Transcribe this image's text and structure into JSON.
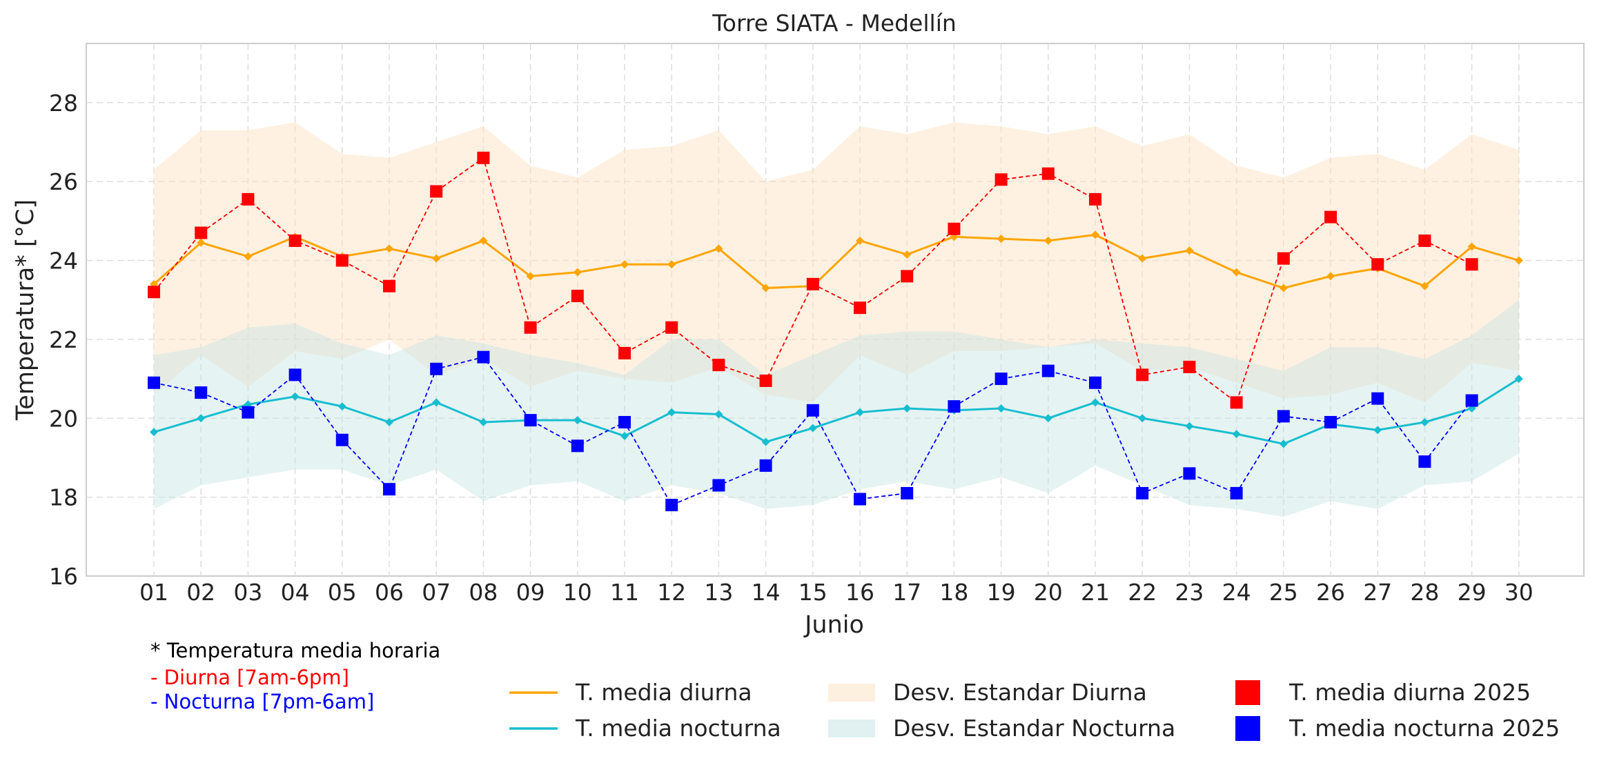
{
  "chart_data": {
    "type": "line",
    "title": "Torre SIATA - Medellín",
    "xlabel": "Junio",
    "ylabel": "Temperatura* [°C]",
    "ylim": [
      16,
      29.5
    ],
    "yticks": [
      16,
      18,
      20,
      22,
      24,
      26,
      28
    ],
    "grid": true,
    "legend_position": "bottom",
    "categories": [
      "01",
      "02",
      "03",
      "04",
      "05",
      "06",
      "07",
      "08",
      "09",
      "10",
      "11",
      "12",
      "13",
      "14",
      "15",
      "16",
      "17",
      "18",
      "19",
      "20",
      "21",
      "22",
      "23",
      "24",
      "25",
      "26",
      "27",
      "28",
      "29",
      "30"
    ],
    "bands": [
      {
        "name": "Desv. Estandar Diurna",
        "color": "#fde3c4",
        "upper": [
          26.3,
          27.3,
          27.3,
          27.5,
          26.7,
          26.6,
          27.0,
          27.4,
          26.4,
          26.1,
          26.8,
          26.9,
          27.3,
          26.0,
          26.3,
          27.4,
          27.2,
          27.5,
          27.4,
          27.2,
          27.4,
          26.9,
          27.2,
          26.4,
          26.1,
          26.6,
          26.7,
          26.3,
          27.2,
          26.8
        ],
        "lower": [
          20.6,
          21.6,
          20.8,
          21.7,
          21.5,
          22.0,
          21.1,
          21.5,
          20.8,
          21.2,
          21.0,
          20.9,
          21.3,
          20.6,
          20.4,
          21.6,
          21.1,
          21.7,
          21.7,
          21.8,
          21.9,
          21.2,
          21.3,
          20.9,
          20.5,
          20.6,
          20.9,
          20.4,
          21.4,
          21.2
        ]
      },
      {
        "name": "Desv. Estandar Nocturna",
        "color": "#c8e4e4",
        "upper": [
          21.6,
          21.8,
          22.3,
          22.4,
          21.9,
          21.6,
          22.1,
          21.9,
          21.6,
          21.4,
          21.1,
          22.0,
          22.0,
          21.1,
          21.6,
          22.1,
          22.2,
          22.2,
          22.0,
          21.8,
          22.0,
          21.9,
          21.8,
          21.5,
          21.2,
          21.8,
          21.8,
          21.5,
          22.1,
          23.0
        ],
        "lower": [
          17.7,
          18.3,
          18.5,
          18.7,
          18.7,
          18.3,
          18.7,
          17.9,
          18.3,
          18.4,
          17.9,
          18.3,
          18.1,
          17.7,
          17.8,
          18.2,
          18.4,
          18.2,
          18.5,
          18.1,
          18.8,
          18.3,
          17.8,
          17.7,
          17.5,
          17.9,
          17.7,
          18.3,
          18.4,
          19.1
        ]
      }
    ],
    "series": [
      {
        "name": "T. media diurna",
        "color": "#ffa500",
        "style": "solid-diamond",
        "values": [
          23.4,
          24.45,
          24.1,
          24.6,
          24.1,
          24.3,
          24.05,
          24.5,
          23.6,
          23.7,
          23.9,
          23.9,
          24.3,
          23.3,
          23.35,
          24.5,
          24.15,
          24.6,
          24.55,
          24.5,
          24.65,
          24.05,
          24.25,
          23.7,
          23.3,
          23.6,
          23.8,
          23.35,
          24.35,
          24.0
        ]
      },
      {
        "name": "T. media nocturna",
        "color": "#17becf",
        "style": "solid-diamond",
        "values": [
          19.65,
          20.0,
          20.35,
          20.55,
          20.3,
          19.9,
          20.4,
          19.9,
          19.95,
          19.95,
          19.55,
          20.15,
          20.1,
          19.4,
          19.75,
          20.15,
          20.25,
          20.2,
          20.25,
          20.0,
          20.4,
          20.0,
          19.8,
          19.6,
          19.35,
          19.85,
          19.7,
          19.9,
          20.25,
          21.0
        ]
      },
      {
        "name": "T. media diurna 2025",
        "color": "#ff0000",
        "style": "dashed-square",
        "values": [
          23.2,
          24.7,
          25.55,
          24.5,
          24.0,
          23.35,
          25.75,
          26.6,
          22.3,
          23.1,
          21.65,
          22.3,
          21.35,
          20.95,
          23.4,
          22.8,
          23.6,
          24.8,
          26.05,
          26.2,
          25.55,
          21.1,
          21.3,
          20.4,
          24.05,
          25.1,
          23.9,
          24.5,
          23.9,
          null
        ]
      },
      {
        "name": "T. media nocturna 2025",
        "color": "#0000ff",
        "style": "dashed-square",
        "values": [
          20.9,
          20.65,
          20.15,
          21.1,
          19.45,
          18.2,
          21.25,
          21.55,
          19.95,
          19.3,
          19.9,
          17.8,
          18.3,
          18.8,
          20.2,
          17.95,
          18.1,
          20.3,
          21.0,
          21.2,
          20.9,
          18.1,
          18.6,
          18.1,
          20.05,
          19.9,
          20.5,
          18.9,
          20.45,
          null
        ]
      }
    ],
    "legend": {
      "entries": [
        "T. media diurna",
        "T. media nocturna",
        "Desv. Estandar Diurna",
        "Desv. Estandar Nocturna",
        "T. media diurna 2025",
        "T. media nocturna 2025"
      ]
    }
  },
  "notes": {
    "line1": "* Temperatura media horaria",
    "line2": "- Diurna [7am-6pm]",
    "line2_color": "#ff0000",
    "line3": "- Nocturna [7pm-6am]",
    "line3_color": "#0000ff"
  }
}
